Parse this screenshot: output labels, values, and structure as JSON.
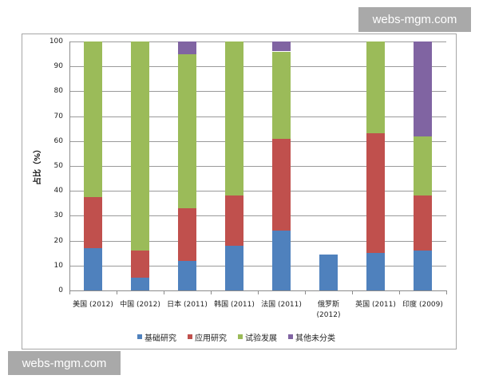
{
  "watermarks": {
    "top": "webs-mgm.com",
    "bottom": "webs-mgm.com"
  },
  "colors": {
    "basic": "#4F81BD",
    "applied": "#C0504D",
    "experimental": "#9BBB59",
    "other": "#8064A2"
  },
  "axis": {
    "ylabel": "占比（%）",
    "yticks": [
      "0",
      "10",
      "20",
      "30",
      "40",
      "50",
      "60",
      "70",
      "80",
      "90",
      "100"
    ]
  },
  "categories": [
    {
      "line1": "美国 (2012)",
      "line2": ""
    },
    {
      "line1": "中国 (2012)",
      "line2": ""
    },
    {
      "line1": "日本 (2011)",
      "line2": ""
    },
    {
      "line1": "韩国 (2011)",
      "line2": ""
    },
    {
      "line1": "法国 (2011)",
      "line2": ""
    },
    {
      "line1": "俄罗斯",
      "line2": "(2012)"
    },
    {
      "line1": "英国 (2011)",
      "line2": ""
    },
    {
      "line1": "印度 (2009)",
      "line2": ""
    }
  ],
  "legend": [
    "基础研究",
    "应用研究",
    "试验发展",
    "其他未分类"
  ],
  "chart_data": {
    "type": "bar",
    "stacked": true,
    "title": "",
    "xlabel": "",
    "ylabel": "占比（%）",
    "ylim": [
      0,
      100
    ],
    "yticks": [
      0,
      10,
      20,
      30,
      40,
      50,
      60,
      70,
      80,
      90,
      100
    ],
    "grid": true,
    "legend_position": "bottom",
    "categories": [
      "美国 (2012)",
      "中国 (2012)",
      "日本 (2011)",
      "韩国 (2011)",
      "法国 (2011)",
      "俄罗斯 (2012)",
      "英国 (2011)",
      "印度 (2009)"
    ],
    "series": [
      {
        "name": "基础研究",
        "color": "#4F81BD",
        "values": [
          17,
          5,
          12,
          18,
          24,
          14.5,
          15,
          16
        ]
      },
      {
        "name": "应用研究",
        "color": "#C0504D",
        "values": [
          20.5,
          11,
          21,
          20,
          37,
          0,
          48,
          22
        ]
      },
      {
        "name": "试验发展",
        "color": "#9BBB59",
        "values": [
          62.5,
          84,
          62,
          62,
          35,
          0,
          37,
          24
        ]
      },
      {
        "name": "其他未分类",
        "color": "#8064A2",
        "values": [
          0,
          0,
          5,
          0,
          4,
          0,
          0,
          38
        ]
      }
    ]
  }
}
